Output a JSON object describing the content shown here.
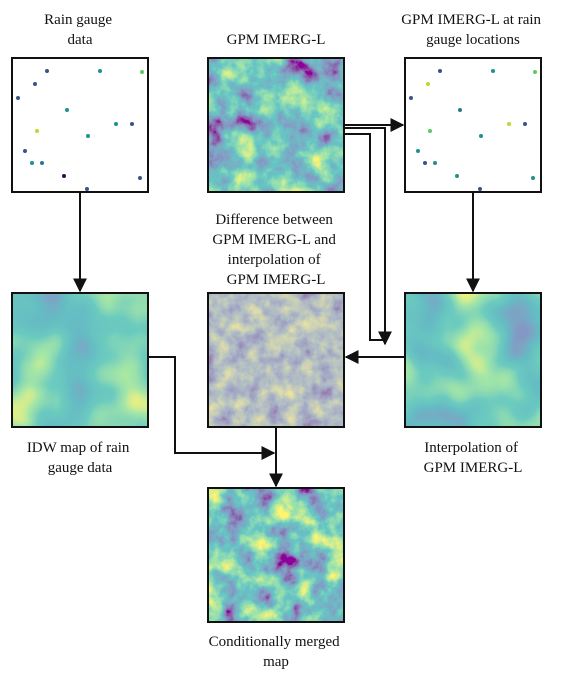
{
  "nodes": [
    {
      "label": [
        "Rain gauge",
        "data"
      ]
    },
    {
      "label": [
        "GPM IMERG-L"
      ]
    },
    {
      "label": [
        "GPM IMERG-L at rain",
        "gauge locations"
      ]
    },
    {
      "label": [
        "IDW map of rain",
        "gauge data"
      ]
    },
    {
      "label": [
        "Difference between",
        "GPM IMERG-L and",
        "interpolation of",
        "GPM IMERG-L"
      ]
    },
    {
      "label": [
        "Interpolation of",
        "GPM IMERG-L"
      ]
    },
    {
      "label": [
        "Conditionally merged",
        "map"
      ]
    }
  ]
}
